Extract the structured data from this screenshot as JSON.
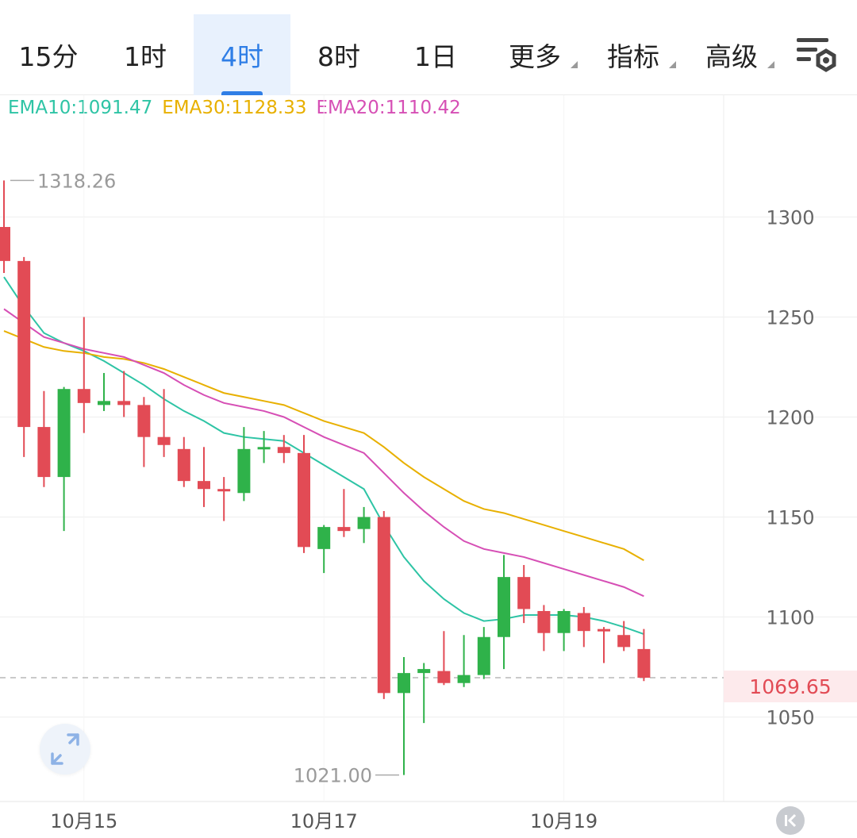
{
  "tabs": [
    {
      "label": "15分",
      "active": false,
      "dropdown": false
    },
    {
      "label": "1时",
      "active": false,
      "dropdown": false
    },
    {
      "label": "4时",
      "active": true,
      "dropdown": false
    },
    {
      "label": "8时",
      "active": false,
      "dropdown": false
    },
    {
      "label": "1日",
      "active": false,
      "dropdown": false
    },
    {
      "label": "更多",
      "active": false,
      "dropdown": true
    },
    {
      "label": "指标",
      "active": false,
      "dropdown": true
    },
    {
      "label": "高级",
      "active": false,
      "dropdown": true
    }
  ],
  "settings_icon": "chart-settings-icon",
  "ema": [
    {
      "label": "EMA10:1091.47",
      "color": "#2ec4a5"
    },
    {
      "label": "EMA30:1128.33",
      "color": "#e8b000"
    },
    {
      "label": "EMA20:1110.42",
      "color": "#d64fb5"
    }
  ],
  "last_price": "1069.65",
  "expand_icon": "expand-icon",
  "scroll_end_icon": "scroll-to-end-icon",
  "chart_data": {
    "type": "candlestick",
    "ylim": [
      1005,
      1345
    ],
    "yticks": [
      "1300",
      "1250",
      "1200",
      "1150",
      "1100",
      "1050"
    ],
    "ytick_values": [
      1300,
      1250,
      1200,
      1150,
      1100,
      1050
    ],
    "xticks": [
      {
        "label": "10月15",
        "index": 4
      },
      {
        "label": "10月17",
        "index": 16
      },
      {
        "label": "10月19",
        "index": 28
      }
    ],
    "up_color": "#2fb24a",
    "down_color": "#e24b55",
    "annotations": {
      "high": {
        "label": "1318.26",
        "value": 1318.26,
        "index": 0
      },
      "low": {
        "label": "1021.00",
        "value": 1021.0,
        "index": 20
      }
    },
    "candles": [
      {
        "o": 1295,
        "h": 1318.26,
        "l": 1272,
        "c": 1278
      },
      {
        "o": 1278,
        "h": 1280,
        "l": 1180,
        "c": 1195
      },
      {
        "o": 1195,
        "h": 1213,
        "l": 1165,
        "c": 1170
      },
      {
        "o": 1170,
        "h": 1215,
        "l": 1143,
        "c": 1214
      },
      {
        "o": 1214,
        "h": 1250,
        "l": 1192,
        "c": 1207
      },
      {
        "o": 1206,
        "h": 1222,
        "l": 1203,
        "c": 1208
      },
      {
        "o": 1208,
        "h": 1223,
        "l": 1200,
        "c": 1206
      },
      {
        "o": 1206,
        "h": 1210,
        "l": 1175,
        "c": 1190
      },
      {
        "o": 1190,
        "h": 1214,
        "l": 1180,
        "c": 1186
      },
      {
        "o": 1184,
        "h": 1190,
        "l": 1165,
        "c": 1168
      },
      {
        "o": 1168,
        "h": 1185,
        "l": 1155,
        "c": 1164
      },
      {
        "o": 1164,
        "h": 1170,
        "l": 1148,
        "c": 1163
      },
      {
        "o": 1162,
        "h": 1195,
        "l": 1158,
        "c": 1184
      },
      {
        "o": 1184,
        "h": 1193,
        "l": 1177,
        "c": 1185
      },
      {
        "o": 1185,
        "h": 1191,
        "l": 1177,
        "c": 1182
      },
      {
        "o": 1182,
        "h": 1191,
        "l": 1132,
        "c": 1135
      },
      {
        "o": 1134,
        "h": 1146,
        "l": 1122,
        "c": 1145
      },
      {
        "o": 1145,
        "h": 1164,
        "l": 1140,
        "c": 1143
      },
      {
        "o": 1144,
        "h": 1155,
        "l": 1137,
        "c": 1150
      },
      {
        "o": 1150,
        "h": 1153,
        "l": 1059,
        "c": 1062
      },
      {
        "o": 1062,
        "h": 1080,
        "l": 1021.0,
        "c": 1072
      },
      {
        "o": 1072,
        "h": 1077,
        "l": 1047,
        "c": 1074
      },
      {
        "o": 1073,
        "h": 1093,
        "l": 1066,
        "c": 1067
      },
      {
        "o": 1067,
        "h": 1091,
        "l": 1065,
        "c": 1071
      },
      {
        "o": 1071,
        "h": 1095,
        "l": 1069,
        "c": 1090
      },
      {
        "o": 1090,
        "h": 1131,
        "l": 1074,
        "c": 1120
      },
      {
        "o": 1120,
        "h": 1126,
        "l": 1097,
        "c": 1104
      },
      {
        "o": 1103,
        "h": 1106,
        "l": 1083,
        "c": 1092
      },
      {
        "o": 1092,
        "h": 1104,
        "l": 1083,
        "c": 1103
      },
      {
        "o": 1102,
        "h": 1105,
        "l": 1085,
        "c": 1093
      },
      {
        "o": 1094,
        "h": 1095,
        "l": 1077,
        "c": 1093
      },
      {
        "o": 1091,
        "h": 1098,
        "l": 1083,
        "c": 1085
      },
      {
        "o": 1084,
        "h": 1094,
        "l": 1068,
        "c": 1069.65
      }
    ],
    "series": [
      {
        "color": "#2ec4a5",
        "values": [
          1270,
          1255,
          1242,
          1237,
          1233,
          1228,
          1222,
          1216,
          1209,
          1203,
          1198,
          1192,
          1190,
          1189,
          1188,
          1182,
          1176,
          1170,
          1164,
          1146,
          1130,
          1118,
          1109,
          1102,
          1098,
          1099,
          1101,
          1101,
          1101,
          1100,
          1098,
          1095,
          1091.47
        ]
      },
      {
        "color": "#e8b000",
        "values": [
          1243,
          1239,
          1235,
          1233,
          1232,
          1230,
          1229,
          1227,
          1224,
          1220,
          1216,
          1212,
          1210,
          1208,
          1206,
          1202,
          1198,
          1195,
          1192,
          1185,
          1177,
          1170,
          1164,
          1158,
          1154,
          1152,
          1149,
          1146,
          1143,
          1140,
          1137,
          1134,
          1128.33
        ]
      },
      {
        "color": "#d64fb5",
        "values": [
          1254,
          1247,
          1240,
          1237,
          1234,
          1232,
          1230,
          1226,
          1222,
          1216,
          1211,
          1207,
          1205,
          1203,
          1200,
          1195,
          1190,
          1186,
          1182,
          1172,
          1162,
          1153,
          1145,
          1138,
          1134,
          1132,
          1130,
          1127,
          1124,
          1121,
          1118,
          1115,
          1110.42
        ]
      }
    ]
  }
}
